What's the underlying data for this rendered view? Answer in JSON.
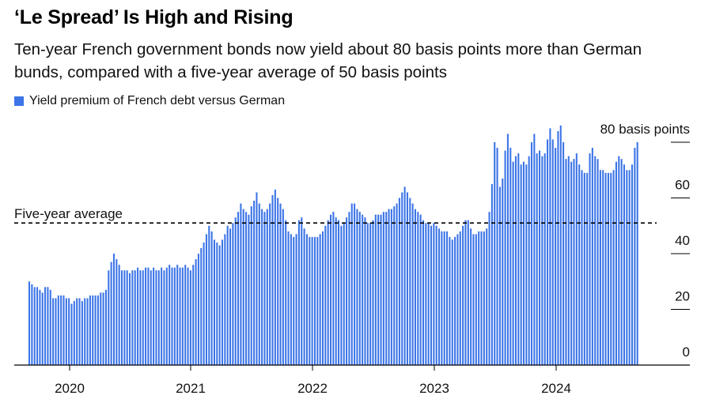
{
  "title": "‘Le Spread’ Is High and Rising",
  "subtitle": "Ten-year French government bonds now yield about 80 basis points more than German bunds, compared with a five-year average of 50 basis points",
  "colors": {
    "bar": "#3b74e6",
    "text": "#111111",
    "avg_line": "#000000"
  },
  "chart_data": {
    "type": "bar",
    "series": [
      {
        "name": "Yield premium of French debt versus German",
        "color": "#3b74e6"
      }
    ],
    "x_ticks": [
      "2020",
      "2021",
      "2022",
      "2023",
      "2024"
    ],
    "y_tick_labels": [
      "80 basis points",
      "60",
      "40",
      "20",
      "0"
    ],
    "y_tick_values": [
      80,
      60,
      40,
      20,
      0
    ],
    "ylim": [
      0,
      80
    ],
    "average": {
      "label": "Five-year average",
      "value": 51
    },
    "x_start": "2019-09",
    "x_end": "2024-09",
    "values": [
      30,
      29,
      28,
      28,
      27,
      26,
      28,
      28,
      27,
      24,
      24,
      25,
      25,
      25,
      24,
      24,
      22,
      23,
      24,
      24,
      23,
      24,
      24,
      25,
      25,
      25,
      25,
      26,
      26,
      27,
      34,
      37,
      40,
      38,
      36,
      34,
      34,
      34,
      33,
      34,
      34,
      35,
      34,
      34,
      35,
      35,
      34,
      35,
      34,
      34,
      35,
      34,
      35,
      36,
      35,
      35,
      36,
      35,
      35,
      36,
      35,
      34,
      36,
      38,
      40,
      42,
      44,
      47,
      50,
      48,
      45,
      44,
      43,
      45,
      47,
      50,
      49,
      51,
      53,
      55,
      58,
      56,
      55,
      54,
      57,
      59,
      62,
      58,
      56,
      55,
      56,
      58,
      61,
      63,
      60,
      58,
      56,
      52,
      48,
      47,
      46,
      47,
      52,
      53,
      49,
      47,
      46,
      46,
      46,
      46,
      47,
      48,
      50,
      52,
      54,
      55,
      53,
      52,
      50,
      51,
      53,
      55,
      58,
      58,
      56,
      55,
      54,
      53,
      51,
      51,
      52,
      54,
      54,
      54,
      55,
      55,
      56,
      56,
      57,
      58,
      60,
      62,
      64,
      62,
      60,
      58,
      56,
      55,
      54,
      52,
      51,
      51,
      50,
      51,
      50,
      49,
      48,
      48,
      48,
      46,
      45,
      46,
      47,
      48,
      50,
      52,
      52,
      49,
      47,
      47,
      48,
      48,
      48,
      49,
      55,
      65,
      80,
      78,
      64,
      67,
      77,
      83,
      78,
      73,
      75,
      76,
      72,
      73,
      72,
      75,
      80,
      83,
      76,
      77,
      75,
      76,
      81,
      85,
      81,
      78,
      84,
      86,
      80,
      74,
      75,
      73,
      74,
      76,
      72,
      70,
      69,
      69,
      76,
      78,
      75,
      74,
      70,
      70,
      69,
      69,
      69,
      70,
      73,
      75,
      74,
      72,
      70,
      70,
      72,
      78,
      80
    ]
  }
}
